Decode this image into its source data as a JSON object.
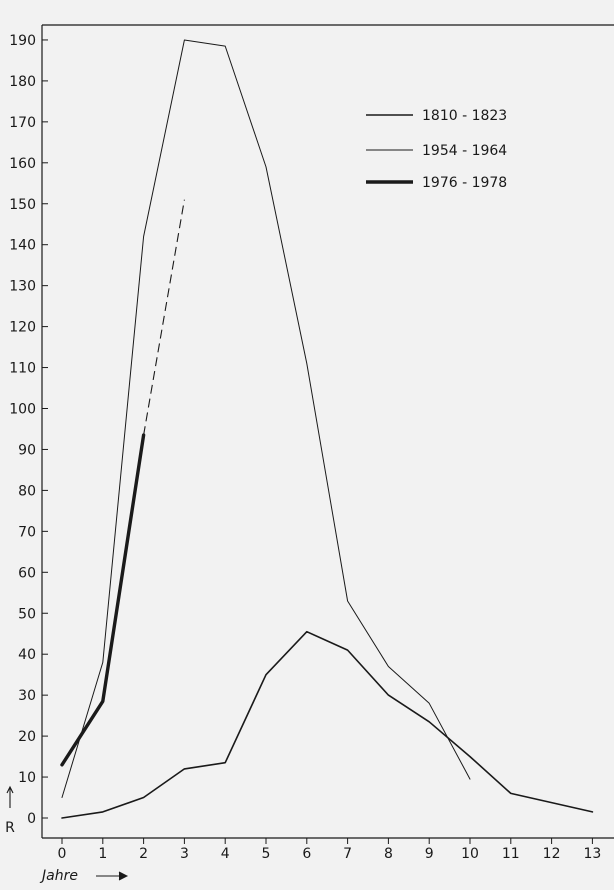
{
  "colors": {
    "background": "#f2f2f2",
    "ink": "#1a1a1a"
  },
  "chart_data": {
    "type": "line",
    "xlabel": "Jahre",
    "ylabel": "R",
    "xlim": [
      0,
      13
    ],
    "ylim": [
      0,
      190
    ],
    "x_ticks": [
      0,
      1,
      2,
      3,
      4,
      5,
      6,
      7,
      8,
      9,
      10,
      11,
      12,
      13
    ],
    "y_ticks": [
      0,
      10,
      20,
      30,
      40,
      50,
      60,
      70,
      80,
      90,
      100,
      110,
      120,
      130,
      140,
      150,
      160,
      170,
      180,
      190
    ],
    "legend_position": "top-right",
    "grid": false,
    "series": [
      {
        "name": "1810 - 1823",
        "line_style": "medium",
        "x": [
          0,
          1,
          2,
          3,
          4,
          5,
          6,
          7,
          8,
          9,
          10,
          11,
          13
        ],
        "y": [
          0,
          1.5,
          5,
          12,
          13.5,
          35,
          45.5,
          41,
          30,
          23.5,
          15,
          6,
          1.5
        ]
      },
      {
        "name": "1954 - 1964",
        "line_style": "thin",
        "x": [
          0,
          1,
          2,
          3,
          4,
          5,
          6,
          7,
          8,
          9,
          10
        ],
        "y": [
          5,
          38,
          142,
          190,
          188.5,
          159,
          111,
          53,
          37,
          28,
          9.5
        ]
      },
      {
        "name": "1976 - 1978",
        "line_style": "thick",
        "x": [
          0,
          1,
          2
        ],
        "y": [
          13,
          28.5,
          93.5
        ],
        "extrapolation": {
          "style": "dashed",
          "x": [
            2,
            3
          ],
          "y": [
            93.5,
            151
          ]
        }
      }
    ]
  }
}
